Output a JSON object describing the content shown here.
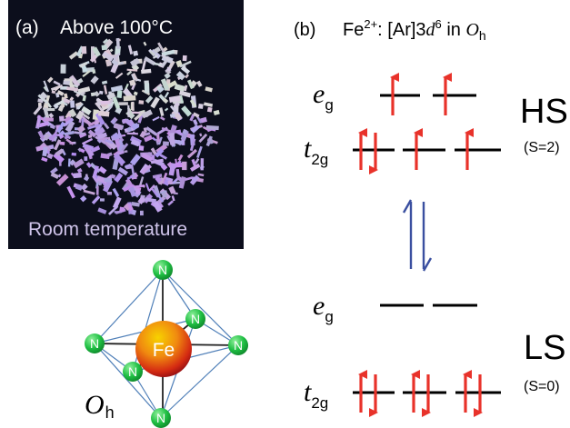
{
  "panel_a": {
    "label": "(a)",
    "top_caption": "Above 100°C",
    "bottom_caption": "Room temperature",
    "photo": "crystal pile photograph",
    "colors": {
      "background": "#0c0e1c",
      "hot_crystals": "#d9d9dd",
      "cold_crystals": "#a98fd6"
    },
    "molecule": {
      "center_atom": "Fe",
      "ligand_atom": "N",
      "symmetry_main": "O",
      "symmetry_sub": "h",
      "colors": {
        "ligand": "#1fbf43",
        "metal_outer": "#c0101a",
        "metal_inner": "#f7d200",
        "bond": "#4f7fb8"
      }
    }
  },
  "panel_b": {
    "label": "(b)",
    "title": {
      "ion": "Fe",
      "charge": "2+",
      "colon": ":",
      "config_pre": "[Ar]3",
      "orbital": "d",
      "electrons": "6",
      "in_word": " in ",
      "sym_main": "O",
      "sym_sub": "h"
    },
    "states": {
      "high_spin": {
        "label": "HS",
        "spin": "(S=2)"
      },
      "low_spin": {
        "label": "LS",
        "spin": "(S=0)"
      }
    },
    "levels": {
      "eg": {
        "main": "e",
        "sub": "g"
      },
      "t2g": {
        "main": "t",
        "sub": "2g"
      }
    },
    "colors": {
      "arrow": "#e8322a",
      "equilibrium": "#3a4fa0",
      "line": "#000000"
    }
  }
}
